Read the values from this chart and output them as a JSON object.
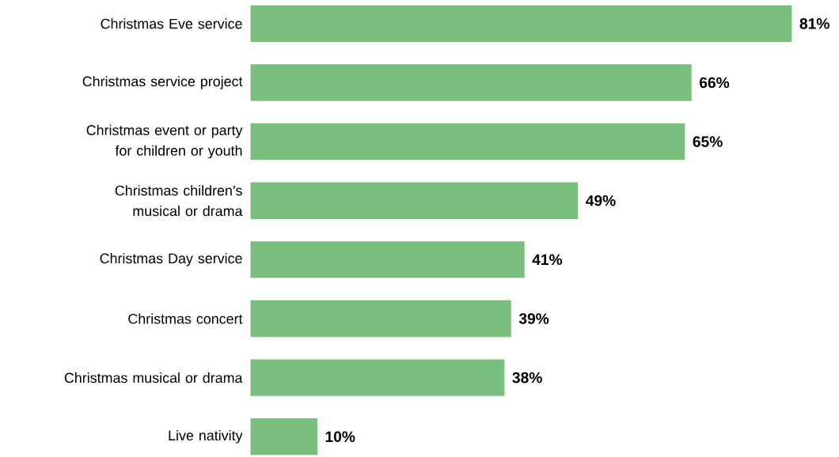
{
  "chart_data": {
    "type": "bar",
    "orientation": "horizontal",
    "categories": [
      "Christmas Eve service",
      "Christmas service project",
      "Christmas event or party for children or youth",
      "Christmas children’s musical or drama",
      "Christmas Day service",
      "Christmas concert",
      "Christmas musical or drama",
      "Live nativity"
    ],
    "values": [
      81,
      66,
      65,
      49,
      41,
      39,
      38,
      10
    ],
    "value_labels": [
      "81%",
      "66%",
      "65%",
      "49%",
      "41%",
      "39%",
      "38%",
      "10%"
    ],
    "color": "#7bbf7f"
  }
}
